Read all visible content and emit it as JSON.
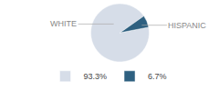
{
  "chart_data": {
    "type": "pie",
    "categories": [
      "93.3%",
      "6.7%"
    ],
    "values": [
      93.3,
      6.7
    ],
    "colors": [
      "#d6dde8",
      "#2e6080"
    ],
    "annotations": [
      "WHITE",
      "HISPANIC"
    ],
    "legend": "bottom"
  }
}
